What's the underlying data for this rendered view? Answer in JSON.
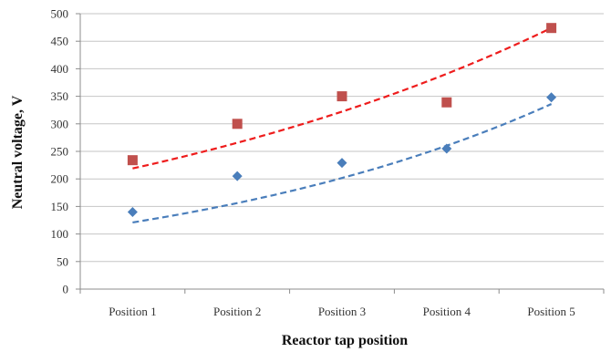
{
  "chart_data": {
    "type": "scatter",
    "title": "",
    "xlabel": "Reactor tap position",
    "ylabel": "Neutral voltage, V",
    "categories": [
      "Position 1",
      "Position 2",
      "Position 3",
      "Position 4",
      "Position 5"
    ],
    "ylim": [
      0,
      500
    ],
    "yticks": [
      0,
      50,
      100,
      150,
      200,
      250,
      300,
      350,
      400,
      450,
      500
    ],
    "grid": true,
    "legend": "none",
    "series": [
      {
        "marker": "diamond",
        "color": "#4a7ebb",
        "values": [
          140,
          205,
          229,
          255,
          348
        ],
        "trend": {
          "type": "exponential",
          "color": "#4a7ebb",
          "start": 121,
          "end": 336
        }
      },
      {
        "marker": "square",
        "color": "#c0504d",
        "values": [
          234,
          300,
          350,
          339,
          474
        ],
        "trend": {
          "type": "exponential",
          "color": "#ee1c1c",
          "start": 219,
          "end": 474
        }
      }
    ]
  }
}
